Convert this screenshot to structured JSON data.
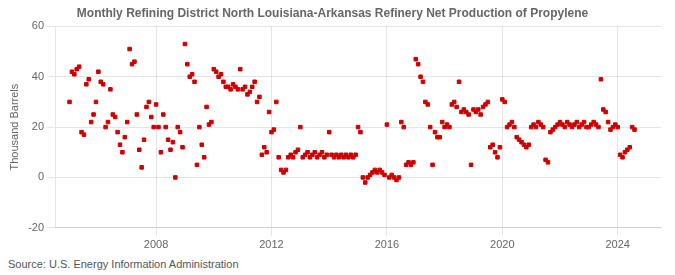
{
  "chart_data": {
    "type": "scatter",
    "title": "Monthly Refining District North Louisiana-Arkansas Refinery Net Production of Propylene",
    "ylabel": "Thousand Barrels",
    "source": "Source: U.S. Energy Information Administration",
    "color": "#cc0000",
    "marker": "square",
    "grid": true,
    "ylim": [
      -20,
      60
    ],
    "yticks": [
      -20,
      0,
      20,
      40,
      60
    ],
    "xlim": [
      2004.5,
      2025.5
    ],
    "xticks": [
      2008,
      2012,
      2016,
      2020,
      2024
    ],
    "x": [
      2005.0,
      2005.083,
      2005.167,
      2005.25,
      2005.333,
      2005.417,
      2005.5,
      2005.583,
      2005.667,
      2005.75,
      2005.833,
      2005.917,
      2006.0,
      2006.083,
      2006.167,
      2006.25,
      2006.333,
      2006.417,
      2006.5,
      2006.583,
      2006.667,
      2006.75,
      2006.833,
      2006.917,
      2007.0,
      2007.083,
      2007.167,
      2007.25,
      2007.333,
      2007.417,
      2007.5,
      2007.583,
      2007.667,
      2007.75,
      2007.833,
      2007.917,
      2008.0,
      2008.083,
      2008.167,
      2008.25,
      2008.333,
      2008.417,
      2008.5,
      2008.583,
      2008.667,
      2008.75,
      2008.833,
      2008.917,
      2009.0,
      2009.083,
      2009.167,
      2009.25,
      2009.333,
      2009.417,
      2009.5,
      2009.583,
      2009.667,
      2009.75,
      2009.833,
      2009.917,
      2010.0,
      2010.083,
      2010.167,
      2010.25,
      2010.333,
      2010.417,
      2010.5,
      2010.583,
      2010.667,
      2010.75,
      2010.833,
      2010.917,
      2011.0,
      2011.083,
      2011.167,
      2011.25,
      2011.333,
      2011.417,
      2011.5,
      2011.583,
      2011.667,
      2011.75,
      2011.833,
      2011.917,
      2012.0,
      2012.083,
      2012.167,
      2012.25,
      2012.333,
      2012.417,
      2012.5,
      2012.583,
      2012.667,
      2012.75,
      2012.833,
      2012.917,
      2013.0,
      2013.083,
      2013.167,
      2013.25,
      2013.333,
      2013.417,
      2013.5,
      2013.583,
      2013.667,
      2013.75,
      2013.833,
      2013.917,
      2014.0,
      2014.083,
      2014.167,
      2014.25,
      2014.333,
      2014.417,
      2014.5,
      2014.583,
      2014.667,
      2014.75,
      2014.833,
      2014.917,
      2015.0,
      2015.083,
      2015.167,
      2015.25,
      2015.333,
      2015.417,
      2015.5,
      2015.583,
      2015.667,
      2015.75,
      2015.833,
      2015.917,
      2016.0,
      2016.083,
      2016.167,
      2016.25,
      2016.333,
      2016.417,
      2016.5,
      2016.583,
      2016.667,
      2016.75,
      2016.833,
      2016.917,
      2017.0,
      2017.083,
      2017.167,
      2017.25,
      2017.333,
      2017.417,
      2017.5,
      2017.583,
      2017.667,
      2017.75,
      2017.833,
      2017.917,
      2018.0,
      2018.083,
      2018.167,
      2018.25,
      2018.333,
      2018.417,
      2018.5,
      2018.583,
      2018.667,
      2018.75,
      2018.833,
      2018.917,
      2019.0,
      2019.083,
      2019.167,
      2019.25,
      2019.333,
      2019.417,
      2019.5,
      2019.583,
      2019.667,
      2019.75,
      2019.833,
      2019.917,
      2020.0,
      2020.083,
      2020.167,
      2020.25,
      2020.333,
      2020.417,
      2020.5,
      2020.583,
      2020.667,
      2020.75,
      2020.833,
      2020.917,
      2021.0,
      2021.083,
      2021.167,
      2021.25,
      2021.333,
      2021.417,
      2021.5,
      2021.583,
      2021.667,
      2021.75,
      2021.833,
      2021.917,
      2022.0,
      2022.083,
      2022.167,
      2022.25,
      2022.333,
      2022.417,
      2022.5,
      2022.583,
      2022.667,
      2022.75,
      2022.833,
      2022.917,
      2023.0,
      2023.083,
      2023.167,
      2023.25,
      2023.333,
      2023.417,
      2023.5,
      2023.583,
      2023.667,
      2023.75,
      2023.833,
      2023.917,
      2024.0,
      2024.083,
      2024.167,
      2024.25,
      2024.333,
      2024.417,
      2024.5,
      2024.583
    ],
    "values": [
      30,
      42,
      41,
      43,
      44,
      18,
      17,
      37,
      39,
      22,
      25,
      30,
      42,
      38,
      37,
      20,
      22,
      35,
      25,
      24,
      18,
      13,
      10,
      16,
      22,
      51,
      45,
      46,
      25,
      11,
      4,
      15,
      28,
      30,
      24,
      20,
      29,
      20,
      10,
      25,
      20,
      15,
      11,
      14,
      0,
      20,
      18,
      12,
      53,
      45,
      40,
      41,
      38,
      5,
      20,
      13,
      8,
      28,
      21,
      22,
      43,
      42,
      40,
      41,
      38,
      36,
      36,
      35,
      37,
      36,
      35,
      43,
      35,
      36,
      33,
      34,
      36,
      38,
      30,
      32,
      9,
      12,
      10,
      26,
      18,
      19,
      30,
      8,
      3,
      2,
      3,
      8,
      9,
      8,
      10,
      11,
      20,
      8,
      9,
      10,
      8,
      9,
      10,
      8,
      9,
      10,
      8,
      9,
      18,
      9,
      8,
      9,
      8,
      9,
      8,
      9,
      8,
      9,
      8,
      9,
      20,
      18,
      0,
      -2,
      0,
      1,
      2,
      3,
      2,
      3,
      2,
      1,
      21,
      0,
      1,
      0,
      -1,
      0,
      22,
      20,
      5,
      6,
      5,
      6,
      47,
      45,
      40,
      38,
      30,
      29,
      20,
      5,
      18,
      16,
      16,
      22,
      20,
      21,
      20,
      29,
      30,
      28,
      38,
      26,
      27,
      26,
      25,
      5,
      27,
      26,
      27,
      25,
      28,
      29,
      30,
      12,
      13,
      10,
      8,
      12,
      31,
      30,
      20,
      21,
      22,
      20,
      16,
      15,
      14,
      13,
      12,
      13,
      20,
      21,
      20,
      22,
      21,
      20,
      7,
      6,
      18,
      19,
      20,
      21,
      22,
      21,
      20,
      22,
      21,
      20,
      21,
      22,
      20,
      21,
      22,
      20,
      20,
      21,
      22,
      21,
      20,
      39,
      27,
      26,
      22,
      19,
      20,
      21,
      20,
      9,
      8,
      10,
      11,
      12,
      20,
      19
    ]
  }
}
